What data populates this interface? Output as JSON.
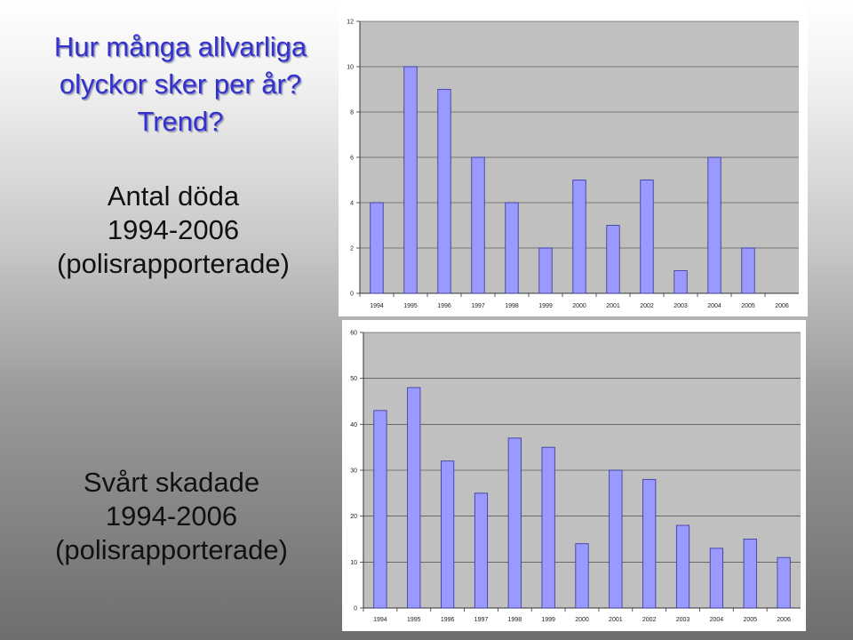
{
  "slide": {
    "title_lines": [
      "Hur många allvarliga",
      "olyckor sker per år?",
      "Trend?"
    ],
    "caption_top_lines": [
      "Antal döda",
      "1994-2006",
      "(polisrapporterade)"
    ],
    "caption_bottom_lines": [
      "Svårt skadade",
      "1994-2006",
      "(polisrapporterade)"
    ]
  },
  "colors": {
    "bar_fill": "#9999ff",
    "bar_stroke": "#333399",
    "plot_bg": "#c0c0c0"
  },
  "chart_data": [
    {
      "type": "bar",
      "categories": [
        "1994",
        "1995",
        "1996",
        "1997",
        "1998",
        "1999",
        "2000",
        "2001",
        "2002",
        "2003",
        "2004",
        "2005",
        "2006"
      ],
      "values": [
        4,
        10,
        9,
        6,
        4,
        2,
        5,
        3,
        5,
        1,
        6,
        2,
        0
      ],
      "yticks": [
        "0",
        "2",
        "4",
        "6",
        "8",
        "10",
        "12"
      ],
      "ylim": [
        0,
        12
      ],
      "grid": true
    },
    {
      "type": "bar",
      "categories": [
        "1994",
        "1995",
        "1996",
        "1997",
        "1998",
        "1999",
        "2000",
        "2001",
        "2002",
        "2003",
        "2004",
        "2005",
        "2006"
      ],
      "values": [
        43,
        48,
        32,
        25,
        37,
        35,
        14,
        30,
        28,
        18,
        13,
        15,
        11
      ],
      "yticks": [
        "0",
        "10",
        "20",
        "30",
        "40",
        "50",
        "60"
      ],
      "ylim": [
        0,
        60
      ],
      "grid": true
    }
  ]
}
